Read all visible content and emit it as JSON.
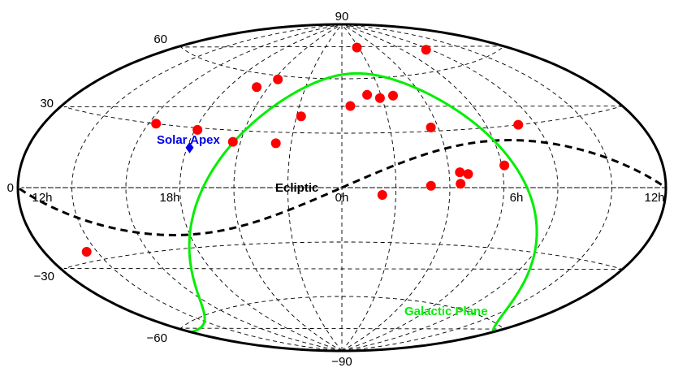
{
  "chart_data": {
    "type": "scatter",
    "projection": "Aitoff",
    "grid": true,
    "colors": {
      "points": "#ff0000",
      "galactic_plane": "#00ee00",
      "ecliptic": "#000000",
      "solar_apex": "#0000ee",
      "grid": "#000000"
    },
    "dec_tick_labels": [
      "90",
      "60",
      "30",
      "0",
      "−30",
      "−60",
      "−90"
    ],
    "ra_tick_labels": [
      "12h",
      "18h",
      "0h",
      "6h",
      "12h"
    ],
    "annotations": {
      "ecliptic": "Ecliptic",
      "galactic_plane": "Galactic Plane",
      "solar_apex": "Solar Apex"
    },
    "solar_apex": {
      "ra_h": 18.1,
      "dec": 20
    },
    "points": [
      {
        "ra_h": 1.8,
        "dec": 77
      },
      {
        "ra_h": 7.7,
        "dec": 70
      },
      {
        "ra_h": 19.4,
        "dec": 53
      },
      {
        "ra_h": 20.2,
        "dec": 58
      },
      {
        "ra_h": 1.3,
        "dec": 51
      },
      {
        "ra_h": 1.9,
        "dec": 49
      },
      {
        "ra_h": 2.6,
        "dec": 50
      },
      {
        "ra_h": 0.4,
        "dec": 45
      },
      {
        "ra_h": 22.2,
        "dec": 39
      },
      {
        "ra_h": 16.3,
        "dec": 30
      },
      {
        "ra_h": 18.1,
        "dec": 29
      },
      {
        "ra_h": 3.7,
        "dec": 32
      },
      {
        "ra_h": 7.3,
        "dec": 30
      },
      {
        "ra_h": 19.7,
        "dec": 24
      },
      {
        "ra_h": 21.4,
        "dec": 24
      },
      {
        "ra_h": 6.1,
        "dec": 11
      },
      {
        "ra_h": 4.4,
        "dec": 8
      },
      {
        "ra_h": 4.7,
        "dec": 7
      },
      {
        "ra_h": 4.4,
        "dec": 2
      },
      {
        "ra_h": 3.3,
        "dec": 1
      },
      {
        "ra_h": 1.5,
        "dec": -4
      },
      {
        "ra_h": 13.6,
        "dec": -26
      }
    ]
  }
}
